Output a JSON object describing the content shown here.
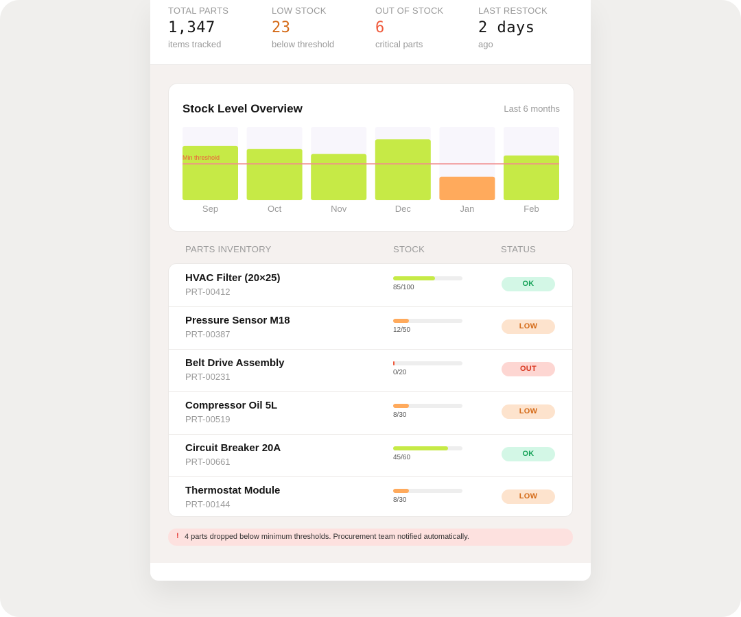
{
  "stats": [
    {
      "label": "TOTAL PARTS",
      "value": "1,347",
      "sub": "items tracked",
      "color": "#151515"
    },
    {
      "label": "LOW STOCK",
      "value": "23",
      "sub": "below threshold",
      "color": "#d46a17"
    },
    {
      "label": "OUT OF STOCK",
      "value": "6",
      "sub": "critical parts",
      "color": "#ef5a3c"
    },
    {
      "label": "LAST RESTOCK",
      "value": "2 days",
      "sub": "ago",
      "color": "#151515"
    }
  ],
  "chart": {
    "title": "Stock Level Overview",
    "range": "Last 6 months",
    "threshold_label": "Min threshold"
  },
  "chart_data": {
    "type": "bar",
    "title": "Stock Level Overview",
    "categories": [
      "Sep",
      "Oct",
      "Nov",
      "Dec",
      "Jan",
      "Feb"
    ],
    "values": [
      74,
      70,
      63,
      83,
      32,
      61
    ],
    "ylim": [
      0,
      100
    ],
    "threshold": 50,
    "threshold_label": "Min threshold",
    "colors": [
      "#c6ea46",
      "#c6ea46",
      "#c6ea46",
      "#c6ea46",
      "#ffaa5c",
      "#c6ea46"
    ],
    "track_color": "#f8f6fc",
    "threshold_color": "#f08b8b"
  },
  "table": {
    "headers": {
      "part": "PARTS INVENTORY",
      "stock": "STOCK",
      "status": "STATUS"
    },
    "rows": [
      {
        "name": "HVAC Filter (20×25)",
        "id": "PRT-00412",
        "stock": "85/100",
        "fill": 0.6,
        "bar_color": "#c6ea46",
        "status": "OK",
        "badge_bg": "#d3f7e6",
        "badge_fg": "#18a35a"
      },
      {
        "name": "Pressure Sensor M18",
        "id": "PRT-00387",
        "stock": "12/50",
        "fill": 0.23,
        "bar_color": "#ffaa5c",
        "status": "LOW",
        "badge_bg": "#fde3cd",
        "badge_fg": "#d46a17"
      },
      {
        "name": "Belt Drive Assembly",
        "id": "PRT-00231",
        "stock": "0/20",
        "fill": 0.02,
        "bar_color": "#ef5a3c",
        "status": "OUT",
        "badge_bg": "#fdd6d2",
        "badge_fg": "#d9361e"
      },
      {
        "name": "Compressor Oil 5L",
        "id": "PRT-00519",
        "stock": "8/30",
        "fill": 0.23,
        "bar_color": "#ffaa5c",
        "status": "LOW",
        "badge_bg": "#fde3cd",
        "badge_fg": "#d46a17"
      },
      {
        "name": "Circuit Breaker 20A",
        "id": "PRT-00661",
        "stock": "45/60",
        "fill": 0.79,
        "bar_color": "#c6ea46",
        "status": "OK",
        "badge_bg": "#d3f7e6",
        "badge_fg": "#18a35a"
      },
      {
        "name": "Thermostat Module",
        "id": "PRT-00144",
        "stock": "8/30",
        "fill": 0.23,
        "bar_color": "#ffaa5c",
        "status": "LOW",
        "badge_bg": "#fde3cd",
        "badge_fg": "#d46a17"
      }
    ]
  },
  "alert": {
    "icon": "!",
    "text": "4 parts dropped below minimum thresholds. Procurement team notified automatically."
  }
}
